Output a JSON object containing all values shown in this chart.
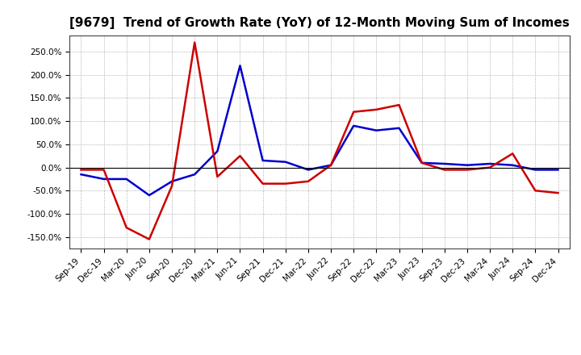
{
  "title": "[9679]  Trend of Growth Rate (YoY) of 12-Month Moving Sum of Incomes",
  "x_labels": [
    "Sep-19",
    "Dec-19",
    "Mar-20",
    "Jun-20",
    "Sep-20",
    "Dec-20",
    "Mar-21",
    "Jun-21",
    "Sep-21",
    "Dec-21",
    "Mar-22",
    "Jun-22",
    "Sep-22",
    "Dec-22",
    "Mar-23",
    "Jun-23",
    "Sep-23",
    "Dec-23",
    "Mar-24",
    "Jun-24",
    "Sep-24",
    "Dec-24"
  ],
  "ordinary_income": [
    -15,
    -25,
    -25,
    -60,
    -30,
    -15,
    35,
    220,
    15,
    12,
    -5,
    5,
    90,
    80,
    85,
    10,
    8,
    5,
    8,
    5,
    -5,
    -5
  ],
  "net_income": [
    -5,
    -5,
    -130,
    -155,
    -40,
    270,
    -20,
    25,
    -35,
    -35,
    -30,
    5,
    120,
    125,
    135,
    10,
    -5,
    -5,
    0,
    30,
    -50,
    -55
  ],
  "ordinary_color": "#0000cc",
  "net_color": "#cc0000",
  "ylim": [
    -175,
    285
  ],
  "yticks": [
    -150,
    -100,
    -50,
    0,
    50,
    100,
    150,
    200,
    250
  ],
  "background_color": "#ffffff",
  "grid_color": "#aaaaaa",
  "line_width": 1.8,
  "title_fontsize": 11,
  "tick_fontsize": 7.5,
  "legend_fontsize": 9
}
